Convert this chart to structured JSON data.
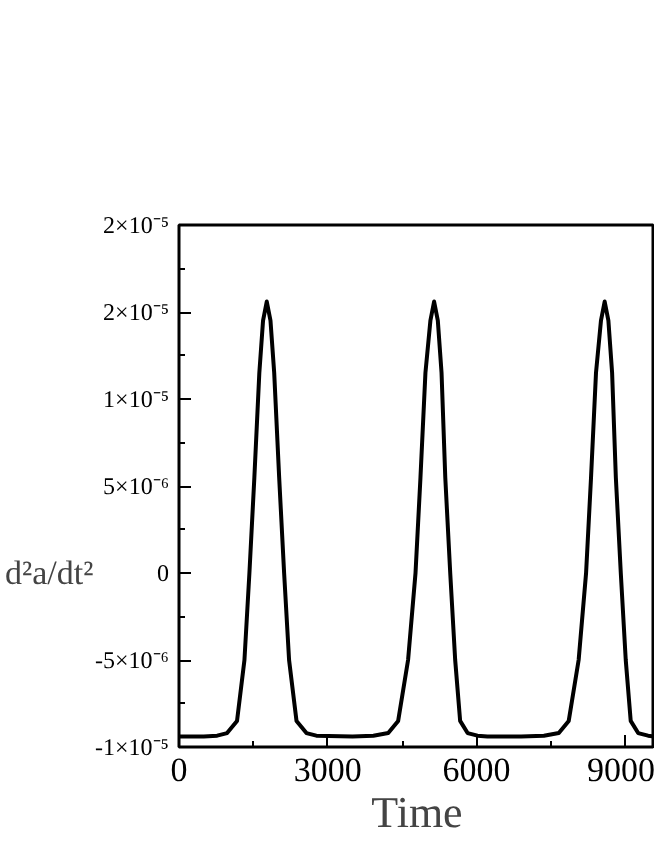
{
  "chart_data": {
    "type": "line",
    "xlabel": "Time",
    "ylabel": "d²a/dt²",
    "xlim": [
      0,
      9600
    ],
    "xticks": [
      0,
      3000,
      6000,
      9000
    ],
    "ylim": [
      -1e-05,
      2e-05
    ],
    "yticks": [
      {
        "value": -1e-05,
        "label": "-1×10⁻⁵"
      },
      {
        "value": -5e-06,
        "label": "-5×10⁻⁶"
      },
      {
        "value": 0,
        "label": "0"
      },
      {
        "value": 5e-06,
        "label": "5×10⁻⁶"
      },
      {
        "value": 1e-05,
        "label": "1×10⁻⁵"
      },
      {
        "value": 1.5e-05,
        "label": "2×10⁻⁵"
      },
      {
        "value": 2e-05,
        "label": "2×10⁻⁵"
      }
    ],
    "grid": false,
    "marker": "none",
    "line_style": "solid",
    "series": [
      {
        "color": "#000000",
        "x": [
          0,
          500,
          770,
          970,
          1170,
          1320,
          1420,
          1520,
          1620,
          1695,
          1770,
          1845,
          1920,
          2020,
          2120,
          2220,
          2370,
          2570,
          2770,
          3500,
          3920,
          4220,
          4420,
          4620,
          4770,
          4870,
          4970,
          5070,
          5145,
          5220,
          5295,
          5370,
          5470,
          5570,
          5670,
          5820,
          6020,
          6220,
          6900,
          7360,
          7660,
          7860,
          8060,
          8210,
          8310,
          8410,
          8510,
          8585,
          8660,
          8735,
          8810,
          8910,
          9010,
          9110,
          9260,
          9460,
          9600
        ],
        "values": [
          -9.4e-06,
          -9.4e-06,
          -9.35e-06,
          -9.2e-06,
          -8.5e-06,
          -5e-06,
          0,
          5.5e-06,
          1.15e-05,
          1.45e-05,
          1.56e-05,
          1.45e-05,
          1.15e-05,
          5.5e-06,
          0,
          -5e-06,
          -8.5e-06,
          -9.2e-06,
          -9.35e-06,
          -9.4e-06,
          -9.35e-06,
          -9.2e-06,
          -8.5e-06,
          -5e-06,
          0,
          5.5e-06,
          1.15e-05,
          1.45e-05,
          1.56e-05,
          1.45e-05,
          1.15e-05,
          5.5e-06,
          0,
          -5e-06,
          -8.5e-06,
          -9.2e-06,
          -9.35e-06,
          -9.4e-06,
          -9.4e-06,
          -9.35e-06,
          -9.2e-06,
          -8.5e-06,
          -5e-06,
          0,
          5.5e-06,
          1.15e-05,
          1.45e-05,
          1.56e-05,
          1.45e-05,
          1.15e-05,
          5.5e-06,
          0,
          -5e-06,
          -8.5e-06,
          -9.2e-06,
          -9.35e-06,
          -9.4e-06
        ]
      }
    ]
  }
}
